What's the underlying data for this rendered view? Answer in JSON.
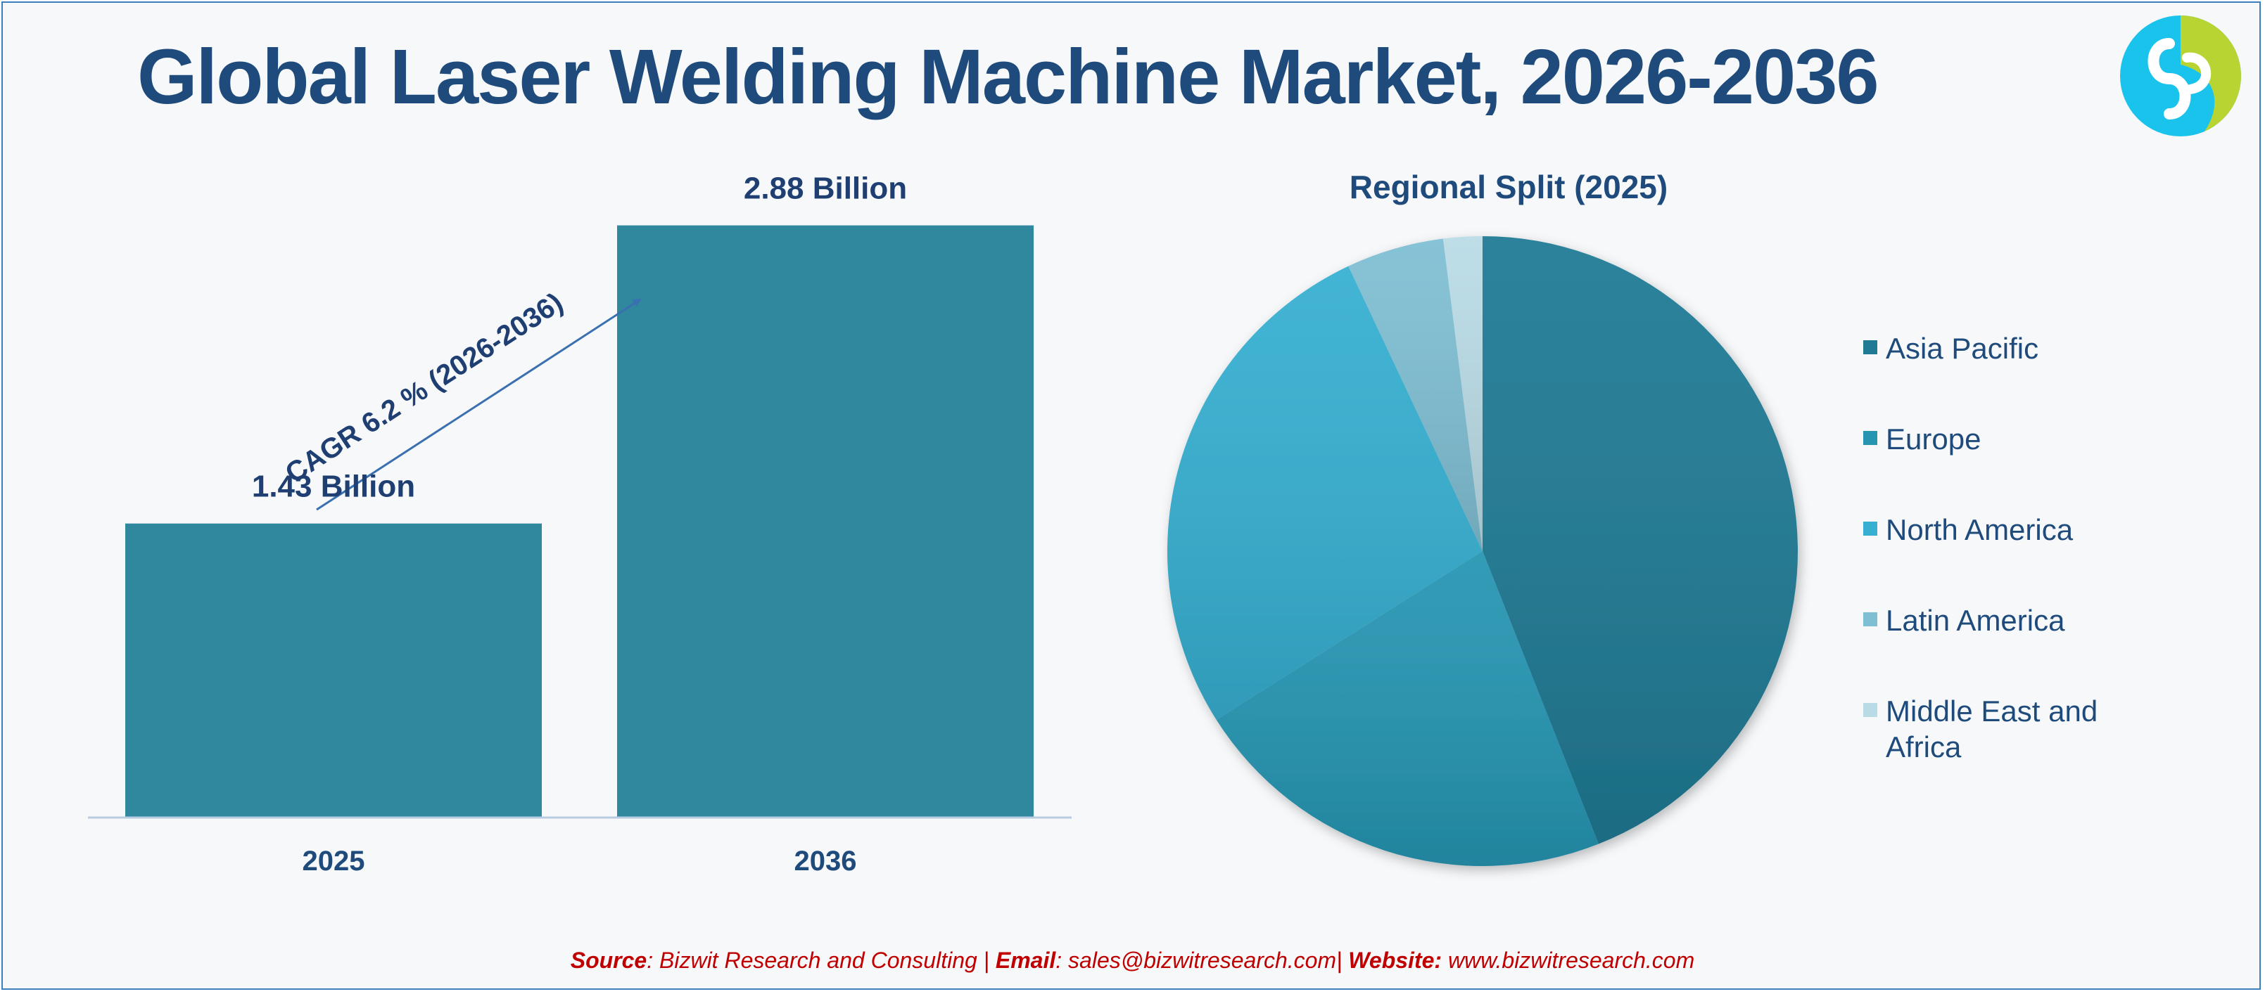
{
  "header": {
    "title": "Global Laser Welding Machine Market, 2026-2036"
  },
  "logo": {
    "icon": "bizwit-logo-icon",
    "colors": {
      "cyan": "#19c3ec",
      "lime": "#b7d433"
    }
  },
  "chart_data": [
    {
      "type": "bar",
      "categories": [
        "2025",
        "2036"
      ],
      "values": [
        1.43,
        2.88
      ],
      "data_labels": [
        "1.43 Billion",
        "2.88 Billion"
      ],
      "annotation": "CAGR 6.2 % (2026-2036)",
      "xlabel": "",
      "ylabel": "",
      "ylim": [
        0,
        3.6
      ],
      "grid": false,
      "color": "#2f889e"
    },
    {
      "type": "pie",
      "title": "Regional Split (2025)",
      "labels": [
        "Asia Pacific",
        "Europe",
        "North America",
        "Latin America",
        "Middle East and Africa"
      ],
      "values": [
        44,
        22,
        27,
        5,
        2
      ],
      "colors": [
        "#1f7a94",
        "#2595b2",
        "#36afd1",
        "#7fbfd3",
        "#b9dbe6"
      ],
      "legend": "right",
      "start": "top",
      "direction": "clockwise"
    }
  ],
  "source": {
    "source_label": "Source",
    "source_text": ": Bizwit Research and Consulting | ",
    "email_label": "Email",
    "email_text": ": sales@bizwitresearch.com| ",
    "website_label": "Website:",
    "website_text": " www.bizwitresearch.com"
  }
}
